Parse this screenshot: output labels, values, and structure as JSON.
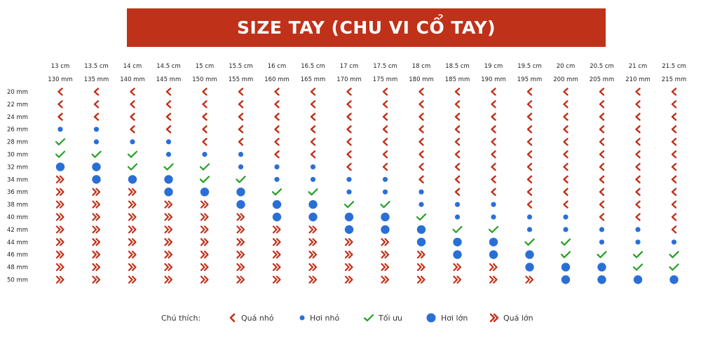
{
  "title": "SIZE TAY (CHU VI CỔ TAY)",
  "colors": {
    "banner": "#c0311a",
    "small": "#c0311a",
    "dot": "#2a6fd6",
    "ok": "#23a023",
    "large": "#c0311a"
  },
  "legend": {
    "label": "Chú thích:",
    "items": [
      {
        "key": "SS",
        "icon": "chevron-left-icon",
        "label": "Quá nhỏ"
      },
      {
        "key": "S",
        "icon": "small-dot-icon",
        "label": "Hơi nhỏ"
      },
      {
        "key": "OK",
        "icon": "check-icon",
        "label": "Tối ưu"
      },
      {
        "key": "L",
        "icon": "large-dot-icon",
        "label": "Hơi lớn"
      },
      {
        "key": "LL",
        "icon": "double-chevron-right-icon",
        "label": "Quá lớn"
      }
    ]
  },
  "chart_data": {
    "type": "table",
    "columns": [
      {
        "cm": "13 cm",
        "mm": "130 mm"
      },
      {
        "cm": "13.5 cm",
        "mm": "135 mm"
      },
      {
        "cm": "14 cm",
        "mm": "140 mm"
      },
      {
        "cm": "14.5 cm",
        "mm": "145 mm"
      },
      {
        "cm": "15 cm",
        "mm": "150 mm"
      },
      {
        "cm": "15.5 cm",
        "mm": "155 mm"
      },
      {
        "cm": "16 cm",
        "mm": "160 mm"
      },
      {
        "cm": "16.5 cm",
        "mm": "165 mm"
      },
      {
        "cm": "17 cm",
        "mm": "170 mm"
      },
      {
        "cm": "17.5 cm",
        "mm": "175 mm"
      },
      {
        "cm": "18 cm",
        "mm": "180 mm"
      },
      {
        "cm": "18.5 cm",
        "mm": "185 mm"
      },
      {
        "cm": "19 cm",
        "mm": "190 mm"
      },
      {
        "cm": "19.5 cm",
        "mm": "195 mm"
      },
      {
        "cm": "20 cm",
        "mm": "200 mm"
      },
      {
        "cm": "20.5 cm",
        "mm": "205 mm"
      },
      {
        "cm": "21 cm",
        "mm": "210 mm"
      },
      {
        "cm": "21.5 cm",
        "mm": "215 mm"
      }
    ],
    "rows": [
      "20 mm",
      "22 mm",
      "24 mm",
      "26 mm",
      "28 mm",
      "30 mm",
      "32 mm",
      "34 mm",
      "36 mm",
      "38 mm",
      "40 mm",
      "42 mm",
      "44 mm",
      "46 mm",
      "48 mm",
      "50 mm"
    ],
    "cells": [
      [
        "SS",
        "SS",
        "SS",
        "SS",
        "SS",
        "SS",
        "SS",
        "SS",
        "SS",
        "SS",
        "SS",
        "SS",
        "SS",
        "SS",
        "SS",
        "SS",
        "SS",
        "SS"
      ],
      [
        "SS",
        "SS",
        "SS",
        "SS",
        "SS",
        "SS",
        "SS",
        "SS",
        "SS",
        "SS",
        "SS",
        "SS",
        "SS",
        "SS",
        "SS",
        "SS",
        "SS",
        "SS"
      ],
      [
        "SS",
        "SS",
        "SS",
        "SS",
        "SS",
        "SS",
        "SS",
        "SS",
        "SS",
        "SS",
        "SS",
        "SS",
        "SS",
        "SS",
        "SS",
        "SS",
        "SS",
        "SS"
      ],
      [
        "S",
        "S",
        "SS",
        "SS",
        "SS",
        "SS",
        "SS",
        "SS",
        "SS",
        "SS",
        "SS",
        "SS",
        "SS",
        "SS",
        "SS",
        "SS",
        "SS",
        "SS"
      ],
      [
        "OK",
        "S",
        "S",
        "S",
        "SS",
        "SS",
        "SS",
        "SS",
        "SS",
        "SS",
        "SS",
        "SS",
        "SS",
        "SS",
        "SS",
        "SS",
        "SS",
        "SS"
      ],
      [
        "OK",
        "OK",
        "OK",
        "S",
        "S",
        "S",
        "SS",
        "SS",
        "SS",
        "SS",
        "SS",
        "SS",
        "SS",
        "SS",
        "SS",
        "SS",
        "SS",
        "SS"
      ],
      [
        "L",
        "L",
        "OK",
        "OK",
        "OK",
        "S",
        "S",
        "S",
        "SS",
        "SS",
        "SS",
        "SS",
        "SS",
        "SS",
        "SS",
        "SS",
        "SS",
        "SS"
      ],
      [
        "LL",
        "L",
        "L",
        "L",
        "OK",
        "OK",
        "S",
        "S",
        "S",
        "S",
        "SS",
        "SS",
        "SS",
        "SS",
        "SS",
        "SS",
        "SS",
        "SS"
      ],
      [
        "LL",
        "LL",
        "LL",
        "L",
        "L",
        "L",
        "OK",
        "OK",
        "S",
        "S",
        "S",
        "SS",
        "SS",
        "SS",
        "SS",
        "SS",
        "SS",
        "SS"
      ],
      [
        "LL",
        "LL",
        "LL",
        "LL",
        "LL",
        "L",
        "L",
        "L",
        "OK",
        "OK",
        "S",
        "S",
        "S",
        "SS",
        "SS",
        "SS",
        "SS",
        "SS"
      ],
      [
        "LL",
        "LL",
        "LL",
        "LL",
        "LL",
        "LL",
        "L",
        "L",
        "L",
        "L",
        "OK",
        "S",
        "S",
        "S",
        "S",
        "SS",
        "SS",
        "SS"
      ],
      [
        "LL",
        "LL",
        "LL",
        "LL",
        "LL",
        "LL",
        "LL",
        "LL",
        "L",
        "L",
        "L",
        "OK",
        "OK",
        "S",
        "S",
        "S",
        "S",
        "SS"
      ],
      [
        "LL",
        "LL",
        "LL",
        "LL",
        "LL",
        "LL",
        "LL",
        "LL",
        "LL",
        "LL",
        "L",
        "L",
        "L",
        "OK",
        "OK",
        "S",
        "S",
        "S"
      ],
      [
        "LL",
        "LL",
        "LL",
        "LL",
        "LL",
        "LL",
        "LL",
        "LL",
        "LL",
        "LL",
        "LL",
        "L",
        "L",
        "L",
        "OK",
        "OK",
        "OK",
        "OK"
      ],
      [
        "LL",
        "LL",
        "LL",
        "LL",
        "LL",
        "LL",
        "LL",
        "LL",
        "LL",
        "LL",
        "LL",
        "LL",
        "LL",
        "L",
        "L",
        "L",
        "OK",
        "OK"
      ],
      [
        "LL",
        "LL",
        "LL",
        "LL",
        "LL",
        "LL",
        "LL",
        "LL",
        "LL",
        "LL",
        "LL",
        "LL",
        "LL",
        "LL",
        "L",
        "L",
        "L",
        "L"
      ]
    ]
  }
}
